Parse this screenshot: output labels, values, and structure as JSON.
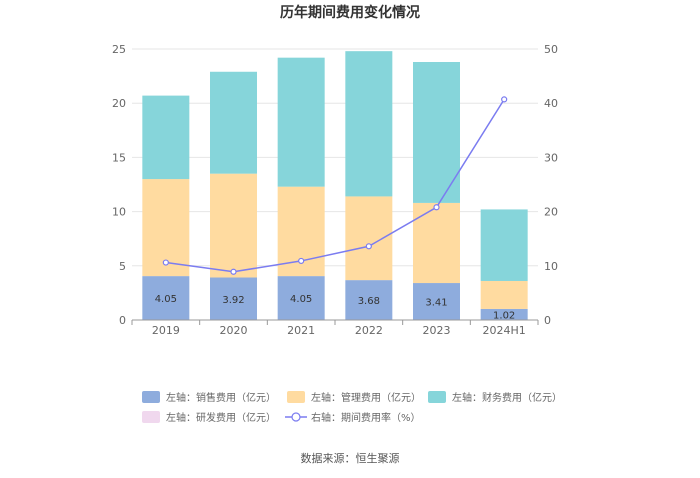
{
  "chart_data": {
    "type": "bar",
    "title": "历年期间费用变化情况",
    "categories": [
      "2019",
      "2020",
      "2021",
      "2022",
      "2023",
      "2024H1"
    ],
    "left_axis": {
      "ylim": [
        0,
        25
      ],
      "ticks": [
        "0",
        "5",
        "10",
        "15",
        "20",
        "25"
      ]
    },
    "right_axis": {
      "ylim": [
        0,
        50
      ],
      "ticks": [
        "0",
        "10",
        "20",
        "30",
        "40",
        "50"
      ]
    },
    "series": [
      {
        "name": "左轴：销售费用（亿元）",
        "axis": "left",
        "color": "#8eacdd",
        "values": [
          4.05,
          3.92,
          4.05,
          3.68,
          3.41,
          1.02
        ],
        "labels": [
          "4.05",
          "3.92",
          "4.05",
          "3.68",
          "3.41",
          "1.02"
        ]
      },
      {
        "name": "左轴：管理费用（亿元）",
        "axis": "left",
        "color": "#ffdba0",
        "values": [
          8.95,
          9.58,
          8.25,
          7.72,
          7.39,
          2.58
        ]
      },
      {
        "name": "左轴：财务费用（亿元）",
        "axis": "left",
        "color": "#86d5da",
        "values": [
          7.7,
          9.4,
          11.9,
          13.4,
          13.0,
          6.6
        ]
      },
      {
        "name": "左轴：研发费用（亿元）",
        "axis": "left",
        "color": "#f0d8ee",
        "values": [
          0,
          0,
          0,
          0,
          0,
          0
        ]
      },
      {
        "name": "右轴：期间费用率（%）",
        "axis": "right",
        "type": "line",
        "color": "#7b7cf0",
        "values": [
          10.6,
          8.9,
          10.9,
          13.6,
          20.8,
          40.7
        ]
      }
    ],
    "source": "数据来源：恒生聚源"
  }
}
